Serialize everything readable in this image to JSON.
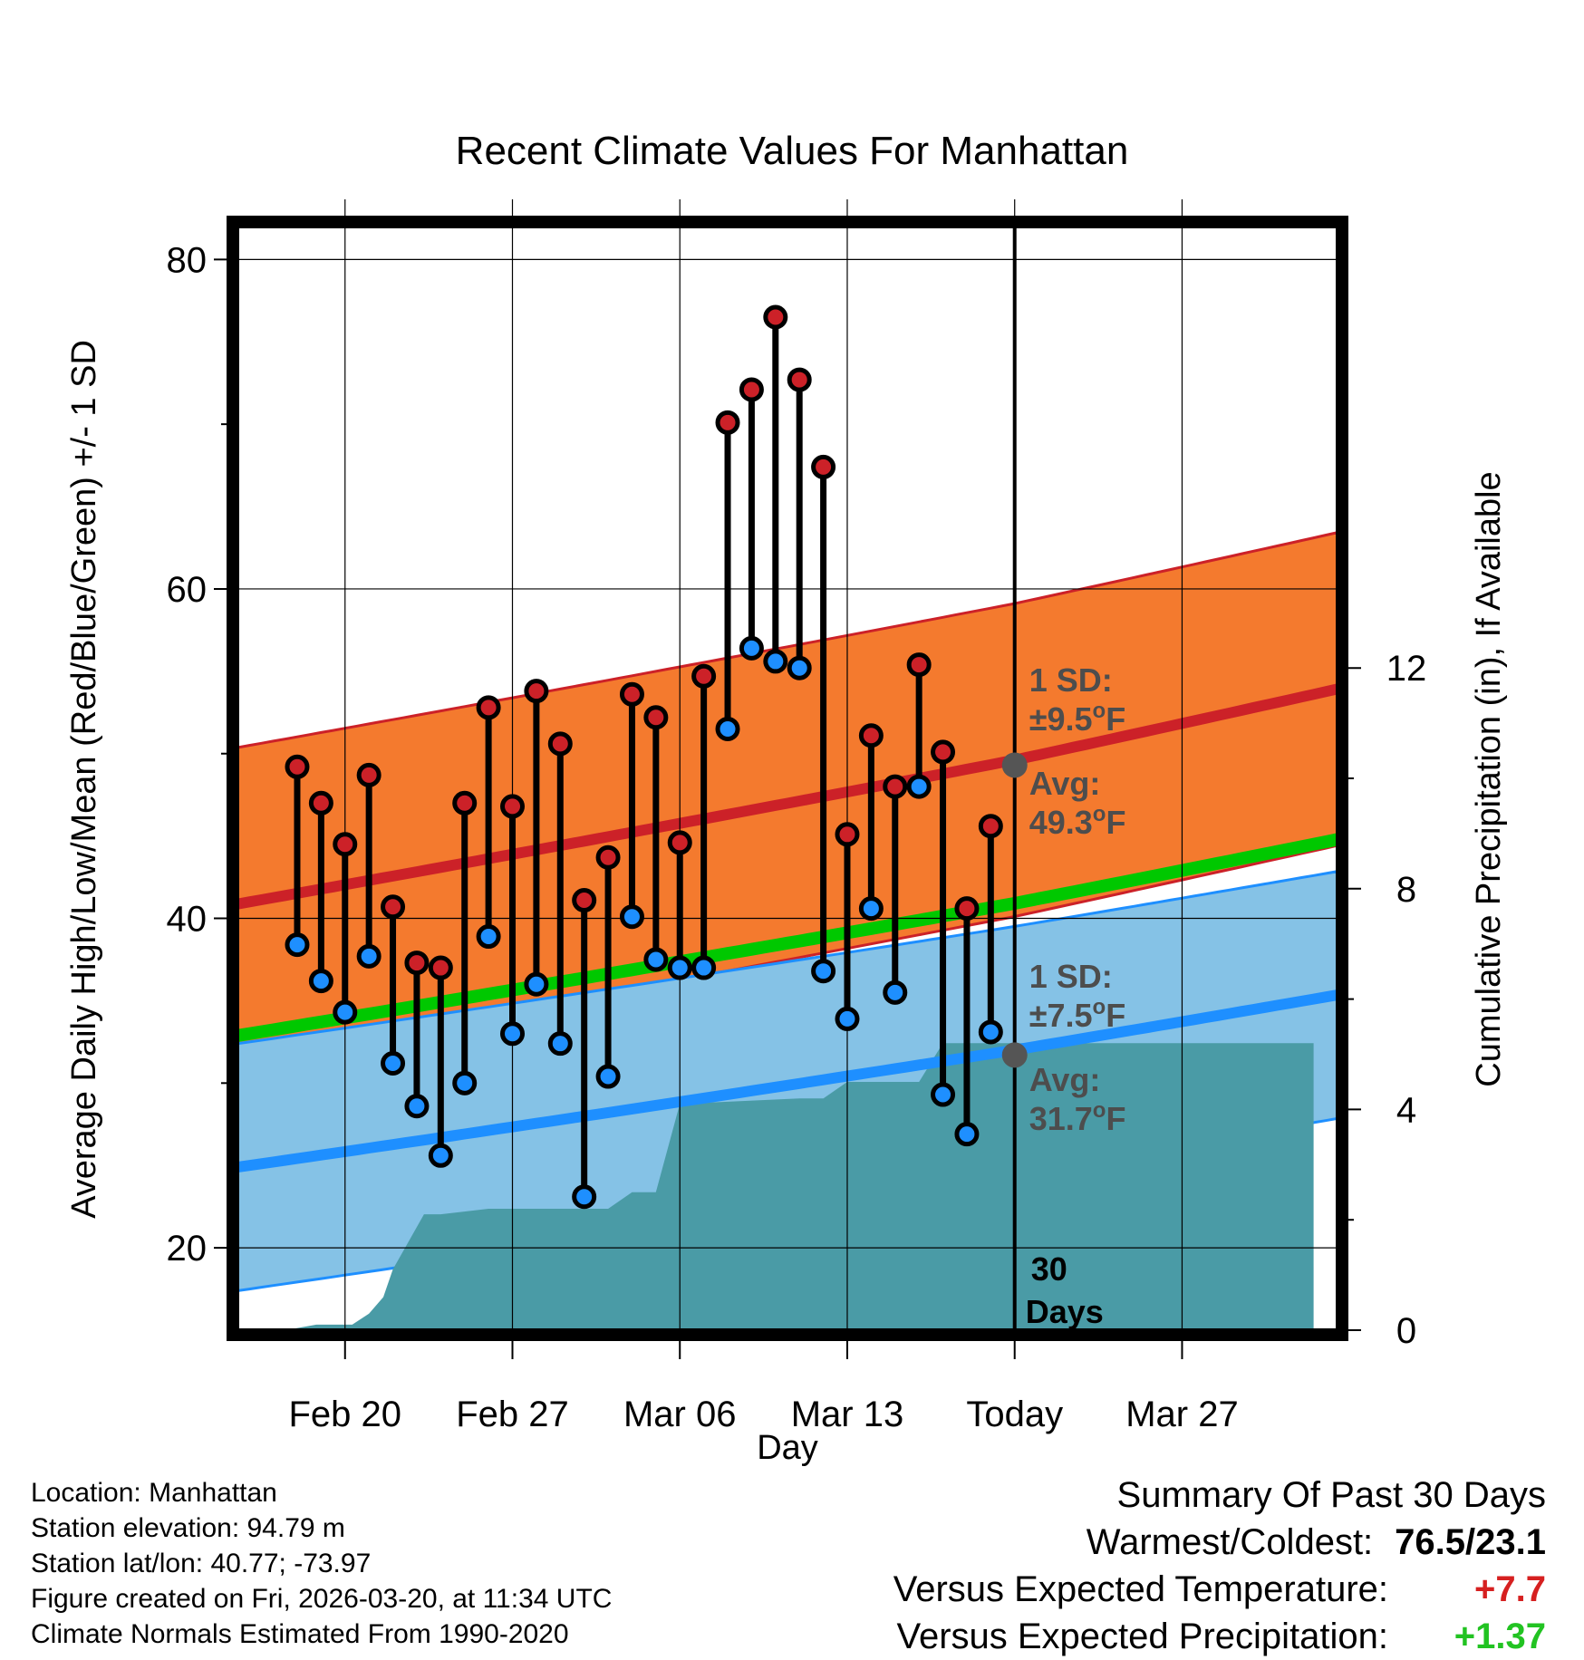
{
  "chart_data": {
    "type": "line",
    "title": "Recent Climate Values For Manhattan",
    "xlabel": "Day",
    "ylabel": "Average Daily High/Low/Mean (Red/Blue/Green) +/- 1 SD",
    "y2label": "Cumulative Precipitation (in), If Available",
    "ylim": [
      15,
      82
    ],
    "y2lim": [
      0,
      20
    ],
    "yticks": [
      20,
      40,
      60,
      80
    ],
    "y2ticks": [
      0,
      4,
      8,
      12
    ],
    "xlim": [
      -3.5,
      42.5
    ],
    "xticks": [
      {
        "x": 1,
        "label": "Feb 20"
      },
      {
        "x": 8,
        "label": "Feb 27"
      },
      {
        "x": 15,
        "label": "Mar 06"
      },
      {
        "x": 22,
        "label": "Mar 13"
      },
      {
        "x": 29,
        "label": "Today"
      },
      {
        "x": 36,
        "label": "Mar 27"
      }
    ],
    "today_x": 29,
    "today_label": [
      "30",
      "Days"
    ],
    "highs": [
      49.2,
      47.0,
      44.5,
      48.7,
      40.7,
      37.3,
      37.0,
      47.0,
      52.8,
      46.8,
      53.8,
      50.6,
      41.1,
      43.7,
      53.6,
      52.2,
      44.6,
      54.7,
      70.1,
      72.1,
      76.5,
      72.7,
      67.4,
      45.1,
      51.1,
      48.0,
      55.4,
      50.1,
      40.6,
      45.6
    ],
    "lows": [
      38.4,
      36.2,
      34.3,
      37.7,
      31.2,
      28.6,
      25.6,
      30.0,
      38.9,
      33.0,
      36.0,
      32.4,
      23.1,
      30.4,
      40.1,
      37.5,
      37.0,
      37.0,
      51.5,
      56.4,
      55.6,
      55.2,
      36.8,
      33.9,
      40.6,
      35.5,
      48.0,
      29.3,
      26.9,
      33.1
    ],
    "normal_high_x": [
      -3,
      29,
      41.5
    ],
    "normal_high": [
      41.0,
      49.3,
      53.0
    ],
    "normal_high_sd": 9.5,
    "normal_low_x": [
      -3,
      29,
      41.5
    ],
    "normal_low": [
      25.0,
      31.7,
      34.5
    ],
    "normal_low_sd": 7.5,
    "normal_mean_x": [
      -3,
      29,
      41.5
    ],
    "normal_mean": [
      33.0,
      40.6,
      43.9
    ],
    "precip_x": [
      -2.5,
      -1.5,
      -0.2,
      1,
      1.3,
      2.0,
      2.6,
      3.0,
      4.3,
      5.0,
      7.0,
      10.0,
      11.3,
      12.0,
      13.0,
      13.5,
      14.0,
      15.0,
      20.0,
      21.0,
      22.0,
      25.0,
      26.0,
      29.0,
      41.5
    ],
    "precip": [
      0,
      0,
      0.1,
      0.1,
      0.1,
      0.3,
      0.6,
      1.1,
      2.1,
      2.1,
      2.2,
      2.2,
      2.2,
      2.2,
      2.5,
      2.5,
      2.5,
      4.1,
      4.2,
      4.2,
      4.5,
      4.5,
      5.2,
      5.2,
      5.2
    ],
    "annotations": {
      "high_sd_label": "1 SD:",
      "high_sd_value": "±9.5",
      "high_avg_label": "Avg:",
      "high_avg_value": "49.3",
      "low_sd_label": "1 SD:",
      "low_sd_value": "±7.5",
      "low_avg_label": "Avg:",
      "low_avg_value": "31.7",
      "deg_sup": "o",
      "unit": "F"
    },
    "colors": {
      "high_band": "#f47a2e",
      "high_line": "#cc2128",
      "low_band": "#85c2e6",
      "low_line": "#1e8fff",
      "mean_line": "#00c800",
      "precip": "#4a9ba6",
      "high_marker": "#cc2128",
      "low_marker": "#1e8fff",
      "today_marker": "#555555"
    }
  },
  "footer": {
    "location": "Location: Manhattan",
    "elevation": "Station elevation: 94.79 m",
    "latlon": "Station lat/lon: 40.77; -73.97",
    "created": "Figure created on Fri, 2026-03-20, at 11:34 UTC",
    "normals": "Climate Normals Estimated From 1990-2020"
  },
  "summary": {
    "title": "Summary Of Past 30 Days",
    "warmest_label": "Warmest/Coldest:",
    "warmest_value": "76.5/23.1",
    "temp_label": "Versus Expected Temperature:",
    "temp_value": "+7.7",
    "temp_color": "#d62020",
    "precip_label": "Versus Expected Precipitation:",
    "precip_value": "+1.37",
    "precip_color": "#22c322"
  }
}
